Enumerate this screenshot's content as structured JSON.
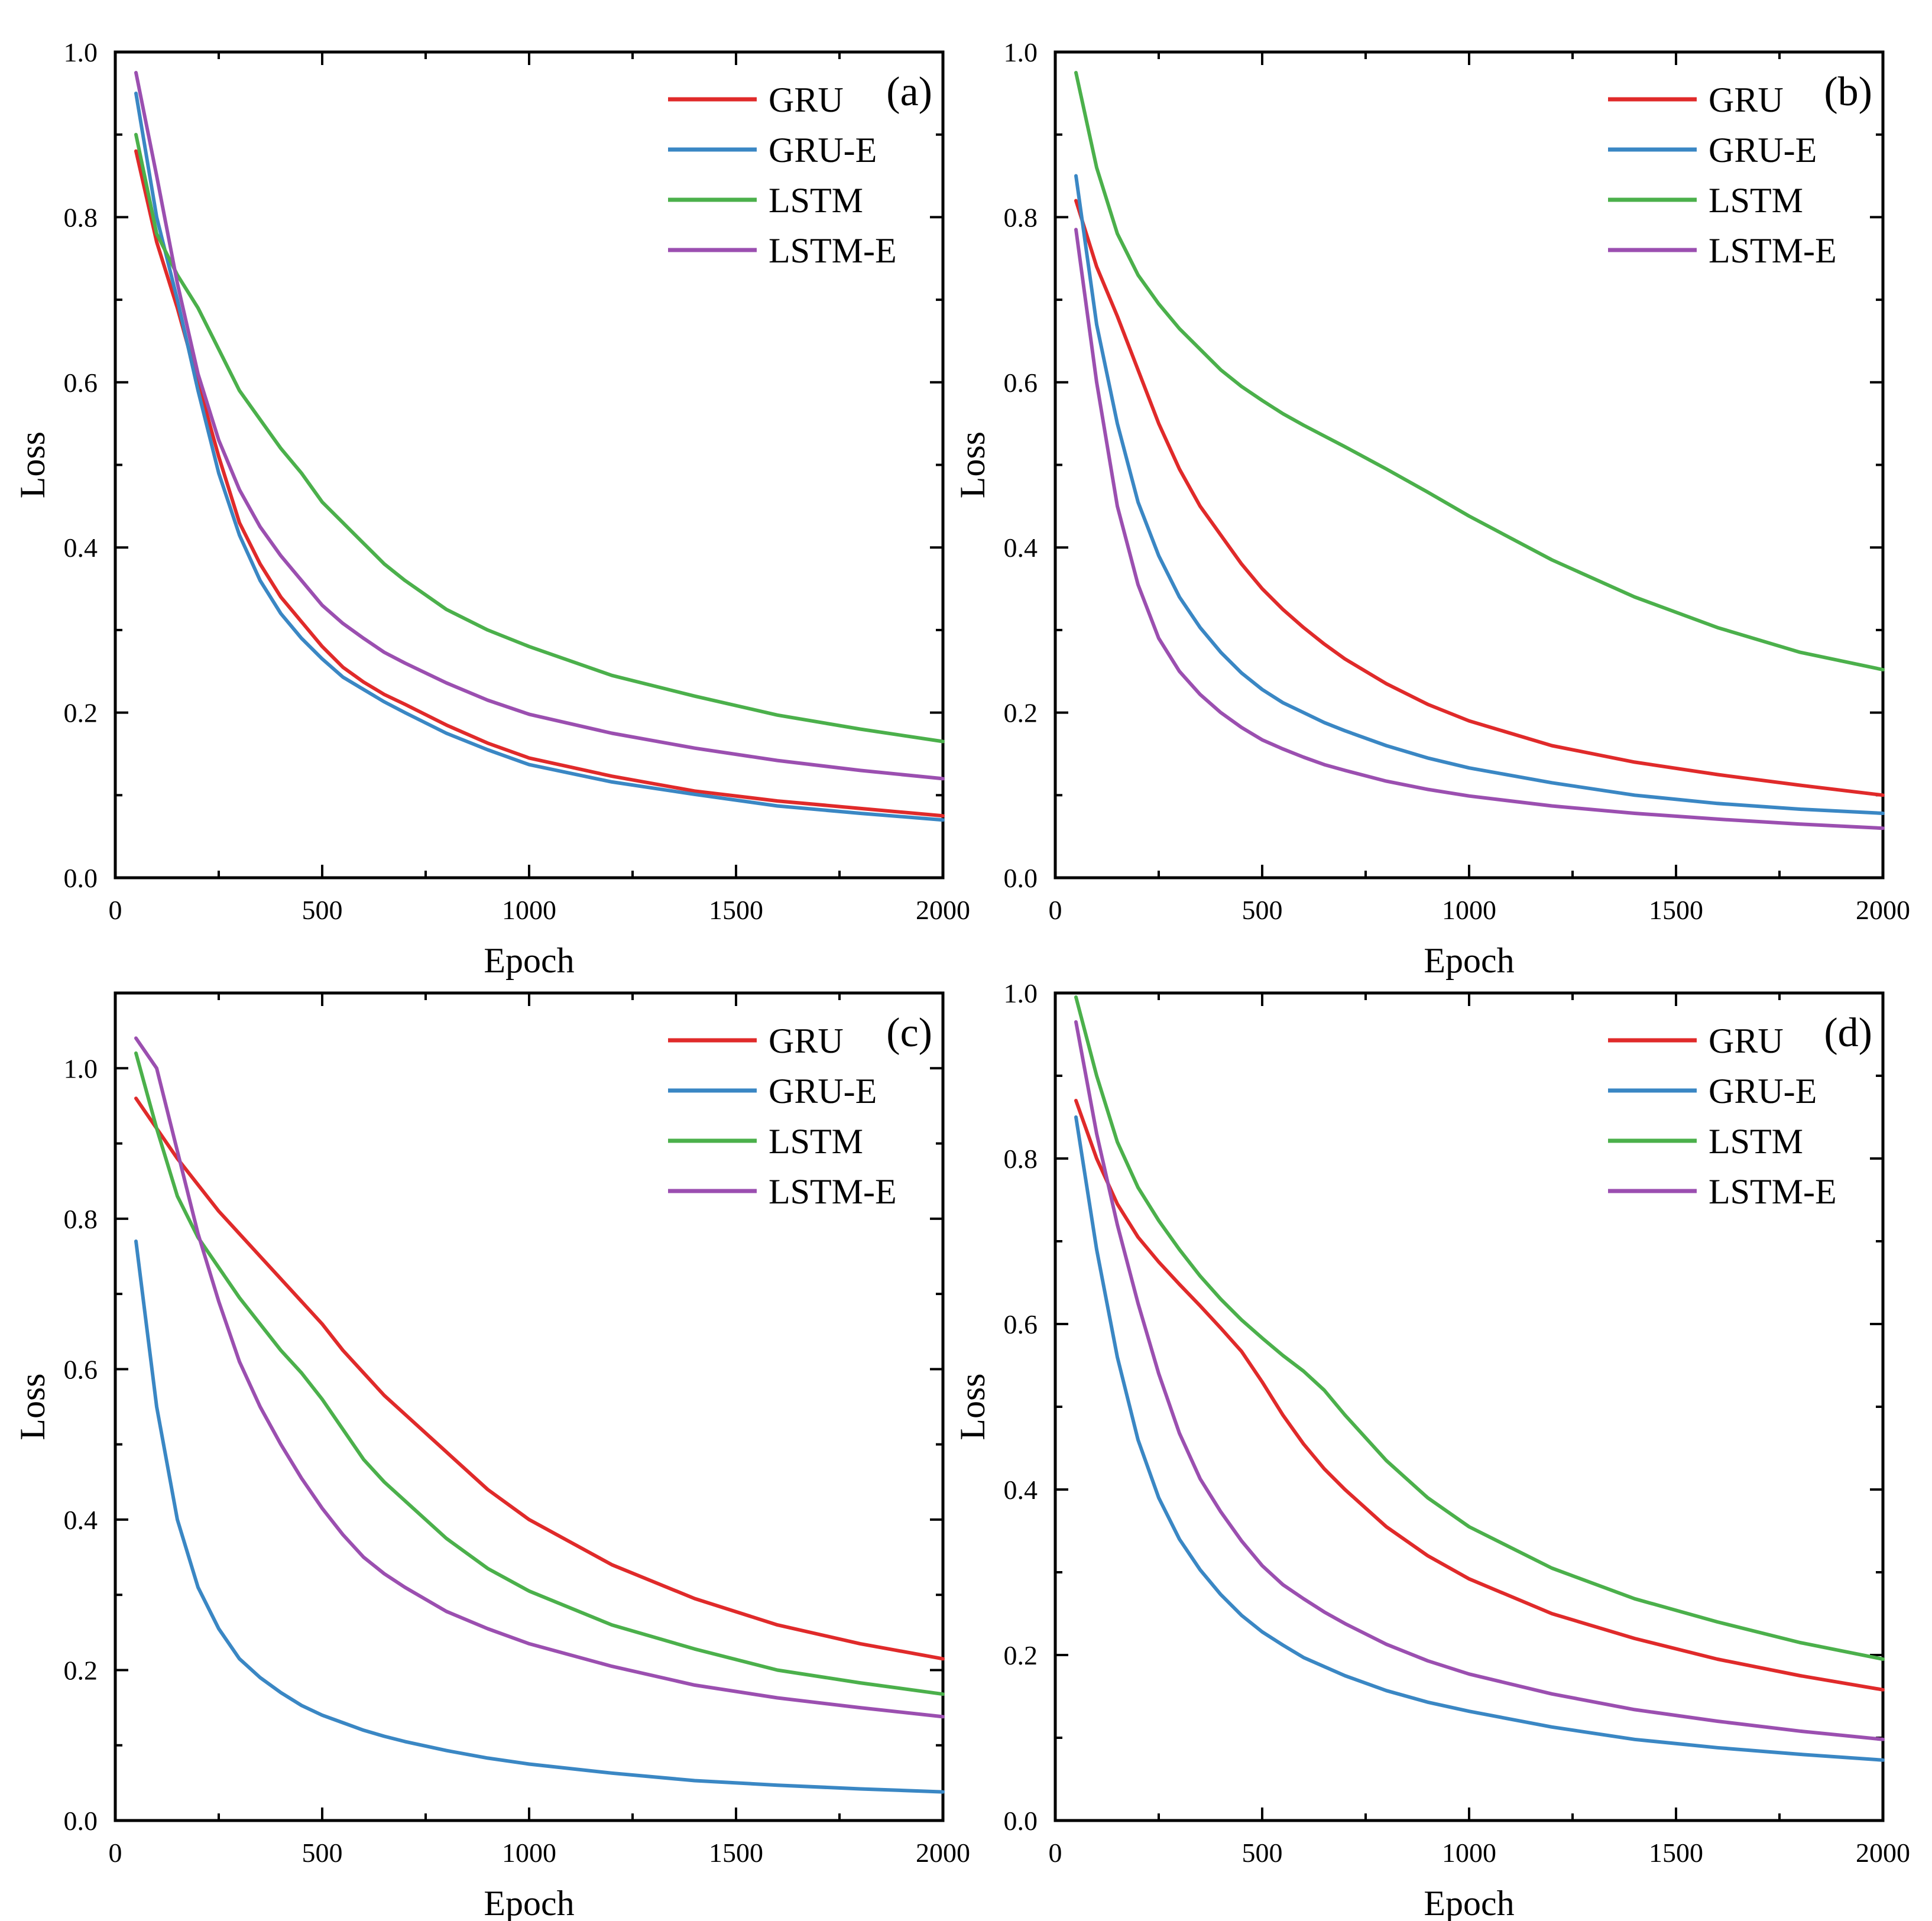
{
  "colors": {
    "GRU": "#e02a2a",
    "GRU-E": "#3a87c4",
    "LSTM": "#4bb04b",
    "LSTM-E": "#9b4fb0"
  },
  "chart_data": [
    {
      "type": "line",
      "panel_label": "(a)",
      "xlabel": "Epoch",
      "ylabel": "Loss",
      "xlim": [
        0,
        2000
      ],
      "ylim": [
        0,
        1.0
      ],
      "xticks": [
        0,
        500,
        1000,
        1500,
        2000
      ],
      "yticks": [
        0.0,
        0.2,
        0.4,
        0.6,
        0.8,
        1.0
      ],
      "xtick_labels": [
        "0",
        "500",
        "1000",
        "1500",
        "2000"
      ],
      "ytick_labels": [
        "0.0",
        "0.2",
        "0.4",
        "0.6",
        "0.8",
        "1.0"
      ],
      "legend_position": "top-right",
      "x": [
        50,
        100,
        150,
        200,
        250,
        300,
        350,
        400,
        450,
        500,
        550,
        600,
        650,
        700,
        800,
        900,
        1000,
        1200,
        1400,
        1600,
        1800,
        2000
      ],
      "series": [
        {
          "name": "GRU",
          "values": [
            0.88,
            0.77,
            0.69,
            0.6,
            0.51,
            0.43,
            0.38,
            0.34,
            0.31,
            0.28,
            0.255,
            0.237,
            0.222,
            0.21,
            0.185,
            0.163,
            0.145,
            0.123,
            0.105,
            0.093,
            0.084,
            0.075
          ]
        },
        {
          "name": "GRU-E",
          "values": [
            0.95,
            0.8,
            0.7,
            0.59,
            0.49,
            0.415,
            0.36,
            0.32,
            0.29,
            0.265,
            0.243,
            0.228,
            0.213,
            0.2,
            0.175,
            0.155,
            0.137,
            0.116,
            0.101,
            0.087,
            0.078,
            0.07
          ]
        },
        {
          "name": "LSTM",
          "values": [
            0.9,
            0.78,
            0.73,
            0.69,
            0.64,
            0.59,
            0.555,
            0.52,
            0.49,
            0.455,
            0.43,
            0.405,
            0.38,
            0.36,
            0.325,
            0.3,
            0.28,
            0.245,
            0.22,
            0.197,
            0.18,
            0.165
          ]
        },
        {
          "name": "LSTM-E",
          "values": [
            0.975,
            0.85,
            0.72,
            0.61,
            0.53,
            0.47,
            0.425,
            0.39,
            0.36,
            0.33,
            0.308,
            0.29,
            0.273,
            0.26,
            0.236,
            0.215,
            0.198,
            0.175,
            0.157,
            0.142,
            0.13,
            0.12
          ]
        }
      ]
    },
    {
      "type": "line",
      "panel_label": "(b)",
      "xlabel": "Epoch",
      "ylabel": "Loss",
      "xlim": [
        0,
        2000
      ],
      "ylim": [
        0,
        1.0
      ],
      "xticks": [
        0,
        500,
        1000,
        1500,
        2000
      ],
      "yticks": [
        0.0,
        0.2,
        0.4,
        0.6,
        0.8,
        1.0
      ],
      "xtick_labels": [
        "0",
        "500",
        "1000",
        "1500",
        "2000"
      ],
      "ytick_labels": [
        "0.0",
        "0.2",
        "0.4",
        "0.6",
        "0.8",
        "1.0"
      ],
      "legend_position": "top-right",
      "x": [
        50,
        100,
        150,
        200,
        250,
        300,
        350,
        400,
        450,
        500,
        550,
        600,
        650,
        700,
        800,
        900,
        1000,
        1200,
        1400,
        1600,
        1800,
        2000
      ],
      "series": [
        {
          "name": "GRU",
          "values": [
            0.82,
            0.74,
            0.68,
            0.615,
            0.55,
            0.495,
            0.45,
            0.415,
            0.38,
            0.35,
            0.325,
            0.303,
            0.283,
            0.265,
            0.235,
            0.21,
            0.19,
            0.16,
            0.14,
            0.125,
            0.112,
            0.1
          ]
        },
        {
          "name": "GRU-E",
          "values": [
            0.85,
            0.67,
            0.55,
            0.455,
            0.39,
            0.34,
            0.303,
            0.273,
            0.248,
            0.228,
            0.212,
            0.2,
            0.188,
            0.178,
            0.16,
            0.145,
            0.133,
            0.115,
            0.1,
            0.09,
            0.083,
            0.078
          ]
        },
        {
          "name": "LSTM",
          "values": [
            0.975,
            0.86,
            0.78,
            0.73,
            0.695,
            0.665,
            0.64,
            0.615,
            0.595,
            0.578,
            0.562,
            0.548,
            0.535,
            0.522,
            0.495,
            0.467,
            0.438,
            0.385,
            0.34,
            0.303,
            0.273,
            0.252
          ]
        },
        {
          "name": "LSTM-E",
          "values": [
            0.785,
            0.6,
            0.45,
            0.355,
            0.29,
            0.25,
            0.222,
            0.2,
            0.182,
            0.167,
            0.156,
            0.146,
            0.137,
            0.13,
            0.117,
            0.107,
            0.099,
            0.087,
            0.078,
            0.071,
            0.065,
            0.06
          ]
        }
      ]
    },
    {
      "type": "line",
      "panel_label": "(c)",
      "xlabel": "Epoch",
      "ylabel": "Loss",
      "xlim": [
        0,
        2000
      ],
      "ylim": [
        0,
        1.1
      ],
      "xticks": [
        0,
        500,
        1000,
        1500,
        2000
      ],
      "yticks": [
        0.0,
        0.2,
        0.4,
        0.6,
        0.8,
        1.0
      ],
      "xtick_labels": [
        "0",
        "500",
        "1000",
        "1500",
        "2000"
      ],
      "ytick_labels": [
        "0.0",
        "0.2",
        "0.4",
        "0.6",
        "0.8",
        "1.0"
      ],
      "legend_position": "top-right",
      "x": [
        50,
        100,
        150,
        200,
        250,
        300,
        350,
        400,
        450,
        500,
        550,
        600,
        650,
        700,
        800,
        900,
        1000,
        1200,
        1400,
        1600,
        1800,
        2000
      ],
      "series": [
        {
          "name": "GRU",
          "values": [
            0.96,
            0.92,
            0.88,
            0.845,
            0.81,
            0.78,
            0.75,
            0.72,
            0.69,
            0.66,
            0.625,
            0.595,
            0.565,
            0.54,
            0.49,
            0.44,
            0.4,
            0.34,
            0.295,
            0.26,
            0.235,
            0.215
          ]
        },
        {
          "name": "GRU-E",
          "values": [
            0.77,
            0.55,
            0.4,
            0.31,
            0.255,
            0.215,
            0.19,
            0.17,
            0.153,
            0.14,
            0.13,
            0.12,
            0.112,
            0.105,
            0.093,
            0.083,
            0.075,
            0.063,
            0.053,
            0.047,
            0.042,
            0.038
          ]
        },
        {
          "name": "LSTM",
          "values": [
            1.02,
            0.92,
            0.83,
            0.775,
            0.735,
            0.695,
            0.66,
            0.625,
            0.595,
            0.56,
            0.52,
            0.48,
            0.45,
            0.425,
            0.375,
            0.335,
            0.305,
            0.26,
            0.228,
            0.2,
            0.183,
            0.168
          ]
        },
        {
          "name": "LSTM-E",
          "values": [
            1.04,
            1.0,
            0.89,
            0.78,
            0.69,
            0.61,
            0.55,
            0.5,
            0.455,
            0.415,
            0.38,
            0.35,
            0.328,
            0.31,
            0.278,
            0.255,
            0.235,
            0.205,
            0.18,
            0.163,
            0.15,
            0.138
          ]
        }
      ]
    },
    {
      "type": "line",
      "panel_label": "(d)",
      "xlabel": "Epoch",
      "ylabel": "Loss",
      "xlim": [
        0,
        2000
      ],
      "ylim": [
        0,
        1.0
      ],
      "xticks": [
        0,
        500,
        1000,
        1500,
        2000
      ],
      "yticks": [
        0.0,
        0.2,
        0.4,
        0.6,
        0.8,
        1.0
      ],
      "xtick_labels": [
        "0",
        "500",
        "1000",
        "1500",
        "2000"
      ],
      "ytick_labels": [
        "0.0",
        "0.2",
        "0.4",
        "0.6",
        "0.8",
        "1.0"
      ],
      "legend_position": "top-right",
      "x": [
        50,
        100,
        150,
        200,
        250,
        300,
        350,
        400,
        450,
        500,
        550,
        600,
        650,
        700,
        800,
        900,
        1000,
        1200,
        1400,
        1600,
        1800,
        2000
      ],
      "series": [
        {
          "name": "GRU",
          "values": [
            0.87,
            0.8,
            0.745,
            0.705,
            0.675,
            0.648,
            0.622,
            0.595,
            0.567,
            0.53,
            0.49,
            0.455,
            0.425,
            0.4,
            0.355,
            0.32,
            0.292,
            0.25,
            0.22,
            0.195,
            0.175,
            0.158
          ]
        },
        {
          "name": "GRU-E",
          "values": [
            0.85,
            0.69,
            0.56,
            0.46,
            0.39,
            0.34,
            0.303,
            0.273,
            0.248,
            0.228,
            0.212,
            0.197,
            0.186,
            0.175,
            0.157,
            0.143,
            0.132,
            0.113,
            0.098,
            0.088,
            0.08,
            0.073
          ]
        },
        {
          "name": "LSTM",
          "values": [
            0.995,
            0.9,
            0.82,
            0.765,
            0.725,
            0.69,
            0.658,
            0.63,
            0.605,
            0.583,
            0.562,
            0.543,
            0.52,
            0.49,
            0.435,
            0.39,
            0.355,
            0.305,
            0.268,
            0.24,
            0.215,
            0.195
          ]
        },
        {
          "name": "LSTM-E",
          "values": [
            0.965,
            0.83,
            0.72,
            0.625,
            0.54,
            0.468,
            0.413,
            0.373,
            0.338,
            0.308,
            0.285,
            0.268,
            0.252,
            0.238,
            0.213,
            0.193,
            0.177,
            0.153,
            0.134,
            0.12,
            0.108,
            0.098
          ]
        }
      ]
    }
  ]
}
